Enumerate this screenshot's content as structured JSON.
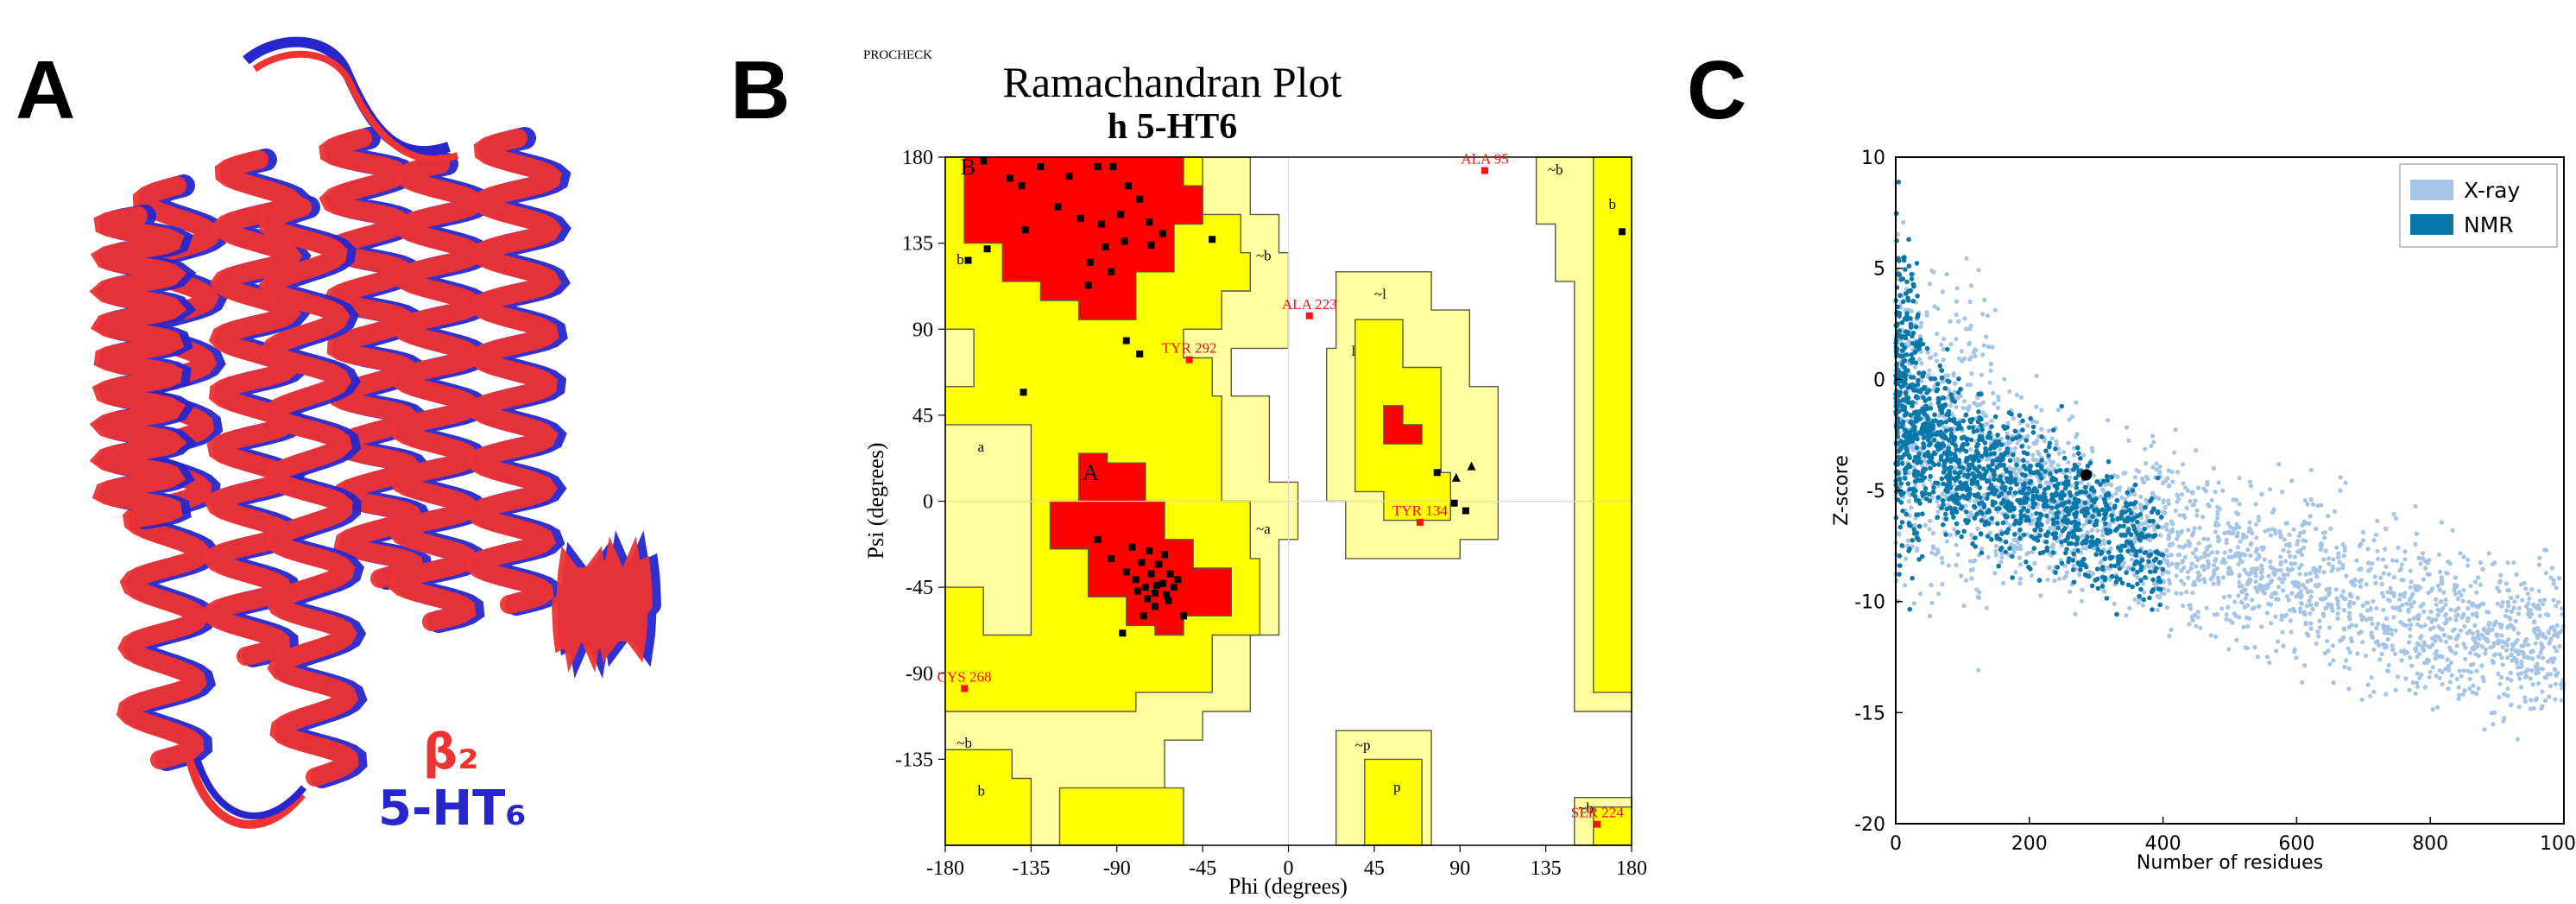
{
  "panels": {
    "a": {
      "letter": "A",
      "legend": [
        {
          "label": "β₂",
          "color": "#ee3333"
        },
        {
          "label": "5-HT₆",
          "color": "#2626cc"
        }
      ]
    },
    "b": {
      "letter": "B"
    },
    "c": {
      "letter": "C"
    }
  },
  "chart_data": [
    {
      "type": "scatter",
      "header": "PROCHECK",
      "title": "Ramachandran Plot",
      "subtitle": "h 5-HT6",
      "xlabel": "Phi (degrees)",
      "ylabel": "Psi (degrees)",
      "xlim": [
        -180,
        180
      ],
      "ylim": [
        -180,
        180
      ],
      "xticks": [
        -180,
        -135,
        -90,
        -45,
        0,
        45,
        90,
        135,
        180
      ],
      "yticks": [
        -135,
        -90,
        -45,
        0,
        45,
        90,
        135,
        180
      ],
      "region_colors": {
        "core": "#ff0000",
        "allowed": "#ffff00",
        "generous": "#ffffa0",
        "outline": "#5a5a3c",
        "background": "#ffffff"
      },
      "region_labels": [
        {
          "text": "B",
          "x": -172,
          "y": 171
        },
        {
          "text": "b",
          "x": -174,
          "y": 124
        },
        {
          "text": "A",
          "x": -108,
          "y": 11
        },
        {
          "text": "a",
          "x": -163,
          "y": 26
        },
        {
          "text": "~b",
          "x": -17,
          "y": 126
        },
        {
          "text": "~l",
          "x": 45,
          "y": 106
        },
        {
          "text": "l",
          "x": 33,
          "y": 76
        },
        {
          "text": "~a",
          "x": -17,
          "y": -17
        },
        {
          "text": "~b",
          "x": 136,
          "y": 171
        },
        {
          "text": "b",
          "x": 168,
          "y": 153
        },
        {
          "text": "~b",
          "x": -174,
          "y": -129
        },
        {
          "text": "b",
          "x": -163,
          "y": -154
        },
        {
          "text": "~p",
          "x": 35,
          "y": -130
        },
        {
          "text": "p",
          "x": 55,
          "y": -152
        },
        {
          "text": "~b",
          "x": 152,
          "y": -163
        }
      ],
      "labeled_outliers": [
        {
          "text": "ALA 95",
          "phi": 103,
          "psi": 173
        },
        {
          "text": "ALA 223",
          "phi": 11,
          "psi": 97
        },
        {
          "text": "TYR 292",
          "phi": -52,
          "psi": 74
        },
        {
          "text": "TYR 134",
          "phi": 69,
          "psi": -11
        },
        {
          "text": "CYS 268",
          "phi": -170,
          "psi": -98
        },
        {
          "text": "SER 224",
          "phi": 162,
          "psi": -169
        }
      ],
      "residues": [
        [
          -160,
          178
        ],
        [
          -146,
          169
        ],
        [
          -140,
          165
        ],
        [
          -130,
          175
        ],
        [
          -115,
          170
        ],
        [
          -100,
          175
        ],
        [
          -92,
          175
        ],
        [
          -84,
          165
        ],
        [
          -78,
          158
        ],
        [
          -73,
          146
        ],
        [
          -66,
          140
        ],
        [
          -88,
          150
        ],
        [
          -98,
          145
        ],
        [
          -109,
          148
        ],
        [
          -121,
          154
        ],
        [
          -138,
          142
        ],
        [
          -158,
          132
        ],
        [
          -168,
          126
        ],
        [
          -104,
          125
        ],
        [
          -96,
          133
        ],
        [
          -86,
          136
        ],
        [
          -72,
          134
        ],
        [
          -105,
          113
        ],
        [
          -93,
          120
        ],
        [
          -85,
          84
        ],
        [
          -78,
          77
        ],
        [
          -40,
          137
        ],
        [
          -139,
          57
        ],
        [
          175,
          141
        ],
        [
          -100,
          -20
        ],
        [
          -93,
          -30
        ],
        [
          -85,
          -37
        ],
        [
          -80,
          -41
        ],
        [
          -75,
          -45
        ],
        [
          -70,
          -48
        ],
        [
          -66,
          -43
        ],
        [
          -62,
          -38
        ],
        [
          -68,
          -33
        ],
        [
          -72,
          -38
        ],
        [
          -77,
          -32
        ],
        [
          -64,
          -49
        ],
        [
          -60,
          -45
        ],
        [
          -70,
          -55
        ],
        [
          -74,
          -51
        ],
        [
          -79,
          -47
        ],
        [
          -65,
          -28
        ],
        [
          -58,
          -41
        ],
        [
          -63,
          -52
        ],
        [
          -69,
          -44
        ],
        [
          -73,
          -26
        ],
        [
          -82,
          -24
        ],
        [
          -55,
          -60
        ],
        [
          -87,
          -69
        ],
        [
          -76,
          -60
        ],
        [
          78,
          15
        ],
        [
          87,
          -1
        ],
        [
          93,
          -5
        ]
      ],
      "glycines": [
        [
          96,
          18
        ],
        [
          88,
          12
        ]
      ]
    },
    {
      "type": "scatter",
      "xlabel": "Number of residues",
      "ylabel": "Z-score",
      "xlim": [
        0,
        1000
      ],
      "ylim": [
        -20,
        10
      ],
      "xticks": [
        0,
        200,
        400,
        600,
        800,
        1000
      ],
      "yticks": [
        -20,
        -15,
        -10,
        -5,
        0,
        5,
        10
      ],
      "legend_position": "top-right",
      "highlight_point": {
        "x": 285,
        "y": -4.3,
        "color": "#000000"
      },
      "series": [
        {
          "name": "X-ray",
          "color": "#a6c4e3",
          "trend": [
            [
              0,
              -1.5
            ],
            [
              100,
              -3.5
            ],
            [
              200,
              -5
            ],
            [
              300,
              -6.2
            ],
            [
              400,
              -7.2
            ],
            [
              500,
              -8.1
            ],
            [
              600,
              -9
            ],
            [
              700,
              -9.9
            ],
            [
              800,
              -10.8
            ],
            [
              900,
              -11.4
            ],
            [
              1000,
              -12
            ]
          ]
        },
        {
          "name": "NMR",
          "color": "#0a78a8",
          "trend": [
            [
              0,
              -0.5
            ],
            [
              50,
              -2.5
            ],
            [
              100,
              -3.8
            ],
            [
              200,
              -5.2
            ],
            [
              300,
              -6.6
            ],
            [
              400,
              -8
            ]
          ]
        }
      ]
    }
  ]
}
